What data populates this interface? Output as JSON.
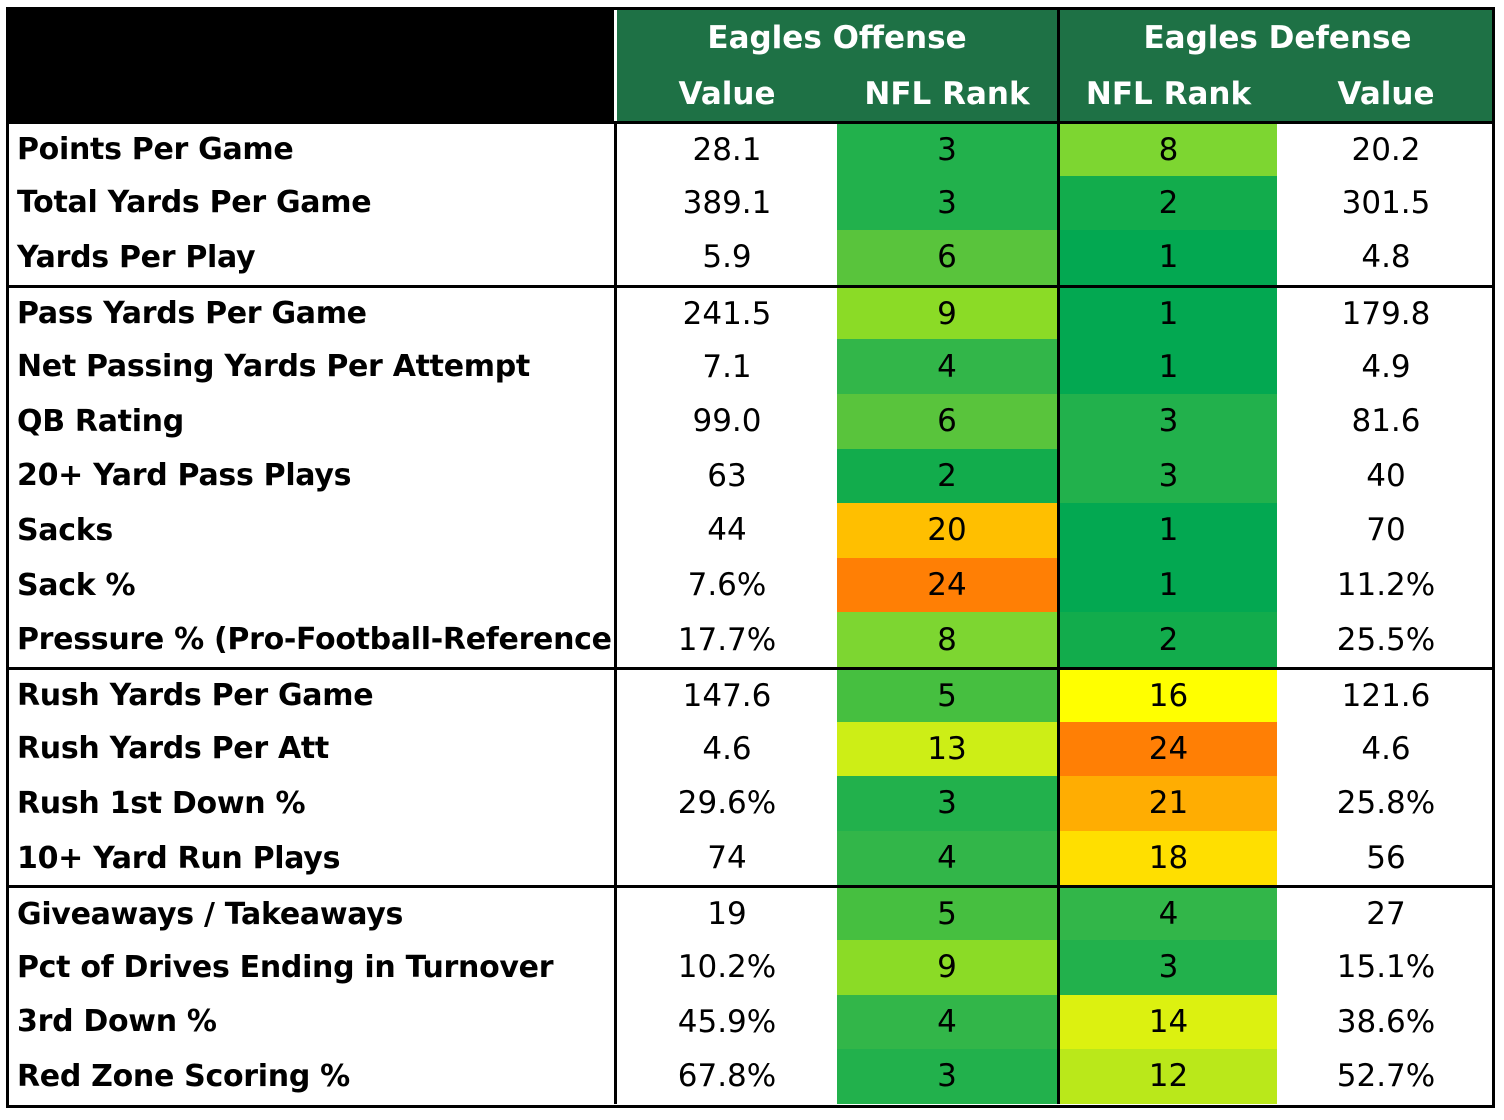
{
  "header": {
    "offense_title": "Eagles Offense",
    "defense_title": "Eagles Defense",
    "offense_value": "Value",
    "offense_rank": "NFL Rank",
    "defense_rank": "NFL Rank",
    "defense_value": "Value"
  },
  "rows": [
    {
      "stat": "Points Per Game",
      "off_value": "28.1",
      "off_rank": "3",
      "off_color": "#22b14c",
      "def_rank": "8",
      "def_color": "#7dd631",
      "def_value": "20.2"
    },
    {
      "stat": "Total Yards Per Game",
      "off_value": "389.1",
      "off_rank": "3",
      "off_color": "#22b14c",
      "def_rank": "2",
      "def_color": "#12ac4c",
      "def_value": "301.5"
    },
    {
      "stat": "Yards Per Play",
      "off_value": "5.9",
      "off_rank": "6",
      "off_color": "#59c43c",
      "def_rank": "1",
      "def_color": "#03a851",
      "def_value": "4.8"
    },
    {
      "stat": "Pass Yards Per Game",
      "off_value": "241.5",
      "off_rank": "9",
      "off_color": "#8bdb26",
      "def_rank": "1",
      "def_color": "#03a851",
      "def_value": "179.8"
    },
    {
      "stat": "Net Passing Yards Per Attempt",
      "off_value": "7.1",
      "off_rank": "4",
      "off_color": "#32b649",
      "def_rank": "1",
      "def_color": "#03a851",
      "def_value": "4.9"
    },
    {
      "stat": "QB Rating",
      "off_value": "99.0",
      "off_rank": "6",
      "off_color": "#59c43c",
      "def_rank": "3",
      "def_color": "#22b14c",
      "def_value": "81.6"
    },
    {
      "stat": "20+ Yard Pass Plays",
      "off_value": "63",
      "off_rank": "2",
      "off_color": "#12ac4c",
      "def_rank": "3",
      "def_color": "#22b14c",
      "def_value": "40"
    },
    {
      "stat": "Sacks",
      "off_value": "44",
      "off_rank": "20",
      "off_color": "#ffbf00",
      "def_rank": "1",
      "def_color": "#03a851",
      "def_value": "70"
    },
    {
      "stat": "Sack %",
      "off_value": "7.6%",
      "off_rank": "24",
      "off_color": "#ff7f05",
      "def_rank": "1",
      "def_color": "#03a851",
      "def_value": "11.2%"
    },
    {
      "stat": "Pressure % (Pro-Football-Reference)",
      "off_value": "17.7%",
      "off_rank": "8",
      "off_color": "#7dd631",
      "def_rank": "2",
      "def_color": "#12ac4c",
      "def_value": "25.5%"
    },
    {
      "stat": "Rush Yards Per Game",
      "off_value": "147.6",
      "off_rank": "5",
      "off_color": "#46bf40",
      "def_rank": "16",
      "def_color": "#ffff00",
      "def_value": "121.6"
    },
    {
      "stat": "Rush Yards Per Att",
      "off_value": "4.6",
      "off_rank": "13",
      "off_color": "#cdee16",
      "def_rank": "24",
      "def_color": "#ff7f05",
      "def_value": "4.6"
    },
    {
      "stat": "Rush 1st Down %",
      "off_value": "29.6%",
      "off_rank": "3",
      "off_color": "#22b14c",
      "def_rank": "21",
      "def_color": "#ffad02",
      "def_value": "25.8%"
    },
    {
      "stat": "10+ Yard Run Plays",
      "off_value": "74",
      "off_rank": "4",
      "off_color": "#32b649",
      "def_rank": "18",
      "def_color": "#ffdf00",
      "def_value": "56"
    },
    {
      "stat": "Giveaways / Takeaways",
      "off_value": "19",
      "off_rank": "5",
      "off_color": "#46bf40",
      "def_rank": "4",
      "def_color": "#32b649",
      "def_value": "27"
    },
    {
      "stat": "Pct of Drives Ending in Turnover",
      "off_value": "10.2%",
      "off_rank": "9",
      "off_color": "#8bdb26",
      "def_rank": "3",
      "def_color": "#22b14c",
      "def_value": "15.1%"
    },
    {
      "stat": "3rd Down %",
      "off_value": "45.9%",
      "off_rank": "4",
      "off_color": "#32b649",
      "def_rank": "14",
      "def_color": "#dcf110",
      "def_value": "38.6%"
    },
    {
      "stat": "Red Zone Scoring %",
      "off_value": "67.8%",
      "off_rank": "3",
      "off_color": "#22b14c",
      "def_rank": "12",
      "def_color": "#bae81a",
      "def_value": "52.7%"
    }
  ],
  "section_breaks": [
    3,
    10,
    14
  ],
  "colors": {
    "header_green": "#1e7145",
    "border": "#000000"
  }
}
